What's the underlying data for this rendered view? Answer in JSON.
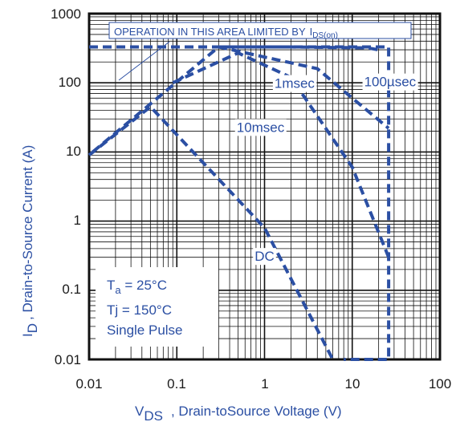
{
  "chart_data": {
    "type": "line",
    "scale": {
      "x": "log",
      "y": "log"
    },
    "xlim": [
      0.01,
      100
    ],
    "ylim": [
      0.01,
      1000
    ],
    "grid": true,
    "x_ticks": [
      "0.01",
      "0.1",
      "1",
      "10",
      "100"
    ],
    "y_ticks": [
      "0.01",
      "0.1",
      "1",
      "10",
      "100",
      "1000"
    ],
    "xlabel": {
      "symbol": "V",
      "sub": "DS",
      "text": ", Drain-toSource Voltage (V)"
    },
    "ylabel": {
      "symbol": "I",
      "sub": "D",
      "text": ", Drain-to-Source Current (A)"
    },
    "annotations": {
      "limit_text": "OPERATION IN THIS AREA LIMITED BY",
      "limit_sym": "I",
      "limit_sub": "DS(on)",
      "conditions": [
        {
          "text": "T",
          "sub": "a",
          "rest": " = 25°C"
        },
        {
          "text": "Tj = 150°C",
          "sub": "",
          "rest": ""
        },
        {
          "text": "Single Pulse",
          "sub": "",
          "rest": ""
        }
      ]
    },
    "colors": {
      "curve": "#2b4fa3",
      "grid": "#111111",
      "box": "#2b4fa3"
    },
    "series": [
      {
        "name": "100µsec",
        "points": [
          [
            0.3,
            330
          ],
          [
            2,
            330
          ],
          [
            15,
            320
          ],
          [
            20,
            300
          ]
        ]
      },
      {
        "name": "1msec",
        "points": [
          [
            0.011,
            10
          ],
          [
            0.06,
            60
          ],
          [
            0.3,
            330
          ],
          [
            4,
            160
          ],
          [
            10,
            60
          ],
          [
            26,
            22
          ]
        ]
      },
      {
        "name": "10msec",
        "points": [
          [
            0.09,
            100
          ],
          [
            0.5,
            270
          ],
          [
            2,
            120
          ],
          [
            10,
            6
          ],
          [
            26,
            0.3
          ]
        ]
      },
      {
        "name": "DC",
        "points": [
          [
            0.01,
            9
          ],
          [
            0.05,
            45
          ],
          [
            1,
            0.8
          ],
          [
            6,
            0.01
          ]
        ]
      },
      {
        "name": "",
        "points": [
          [
            0.01,
            330
          ],
          [
            26,
            330
          ],
          [
            26,
            0.01
          ],
          [
            8,
            0.01
          ]
        ]
      }
    ],
    "labels": [
      {
        "text": "1msec",
        "at": [
          2.2,
          95
        ]
      },
      {
        "text": "100µsec",
        "at": [
          27,
          100
        ]
      },
      {
        "text": "10msec",
        "at": [
          0.9,
          22
        ]
      },
      {
        "text": "DC",
        "at": [
          1.0,
          0.3
        ]
      }
    ]
  }
}
